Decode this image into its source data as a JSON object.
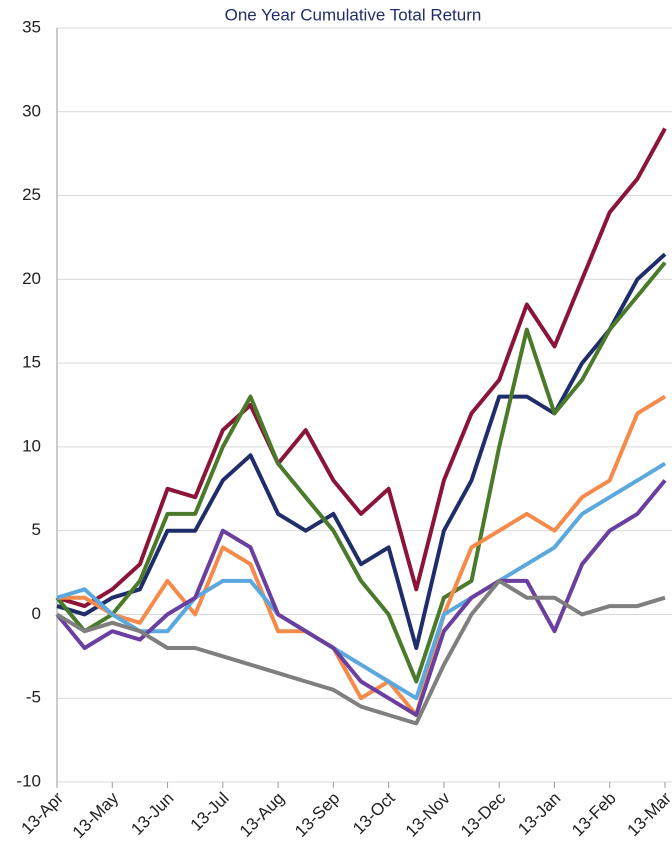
{
  "chart_data": {
    "type": "line",
    "title": "One Year Cumulative Total Return",
    "categories": [
      "13-Apr",
      null,
      "13-May",
      null,
      "13-Jun",
      null,
      "13-Jul",
      null,
      "13-Aug",
      null,
      "13-Sep",
      null,
      "13-Oct",
      null,
      "13-Nov",
      null,
      "13-Dec",
      null,
      "13-Jan",
      null,
      "13-Feb",
      null,
      "13-Mar"
    ],
    "series": [
      {
        "color": "#8b1538",
        "values": [
          1,
          0.5,
          1.5,
          3,
          7.5,
          7,
          11,
          12.5,
          9,
          11,
          8,
          6,
          7.5,
          1.5,
          8,
          12,
          14,
          18.5,
          16,
          20,
          24,
          26,
          29
        ]
      },
      {
        "color": "#1f2d6b",
        "values": [
          0.5,
          0,
          1,
          1.5,
          5,
          5,
          8,
          9.5,
          6,
          5,
          6,
          3,
          4,
          -2,
          5,
          8,
          13,
          13,
          12,
          15,
          17,
          20,
          21.5
        ]
      },
      {
        "color": "#4a7a2a",
        "values": [
          1,
          -1,
          0,
          2,
          6,
          6,
          10,
          13,
          9,
          7,
          5,
          2,
          0,
          -4,
          1,
          2,
          10,
          17,
          12,
          14,
          17,
          19,
          21
        ]
      },
      {
        "color": "#f58a4b",
        "values": [
          1,
          1,
          0,
          -0.5,
          2,
          0,
          4,
          3,
          -1,
          -1,
          -2,
          -5,
          -4,
          -6,
          0,
          4,
          5,
          6,
          5,
          7,
          8,
          12,
          13
        ]
      },
      {
        "color": "#5ba8de",
        "values": [
          1,
          1.5,
          0,
          -1,
          -1,
          1,
          2,
          2,
          0,
          -1,
          -2,
          -3,
          -4,
          -5,
          0,
          1,
          2,
          3,
          4,
          6,
          7,
          8,
          9
        ]
      },
      {
        "color": "#6a3fa0",
        "values": [
          0,
          -2,
          -1,
          -1.5,
          0,
          1,
          5,
          4,
          0,
          -1,
          -2,
          -4,
          -5,
          -6,
          -1,
          1,
          2,
          2,
          -1,
          3,
          5,
          6,
          8
        ]
      },
      {
        "color": "#7f7f7f",
        "values": [
          0,
          -1,
          -0.5,
          -1,
          -2,
          -2,
          -2.5,
          -3,
          -3.5,
          -4,
          -4.5,
          -5.5,
          -6,
          -6.5,
          -3,
          0,
          2,
          1,
          1,
          0,
          0.5,
          0.5,
          1
        ]
      }
    ],
    "ylim": [
      -10,
      35
    ],
    "yticks": [
      -10,
      -5,
      0,
      5,
      10,
      15,
      20,
      25,
      30,
      35
    ],
    "grid": true
  }
}
